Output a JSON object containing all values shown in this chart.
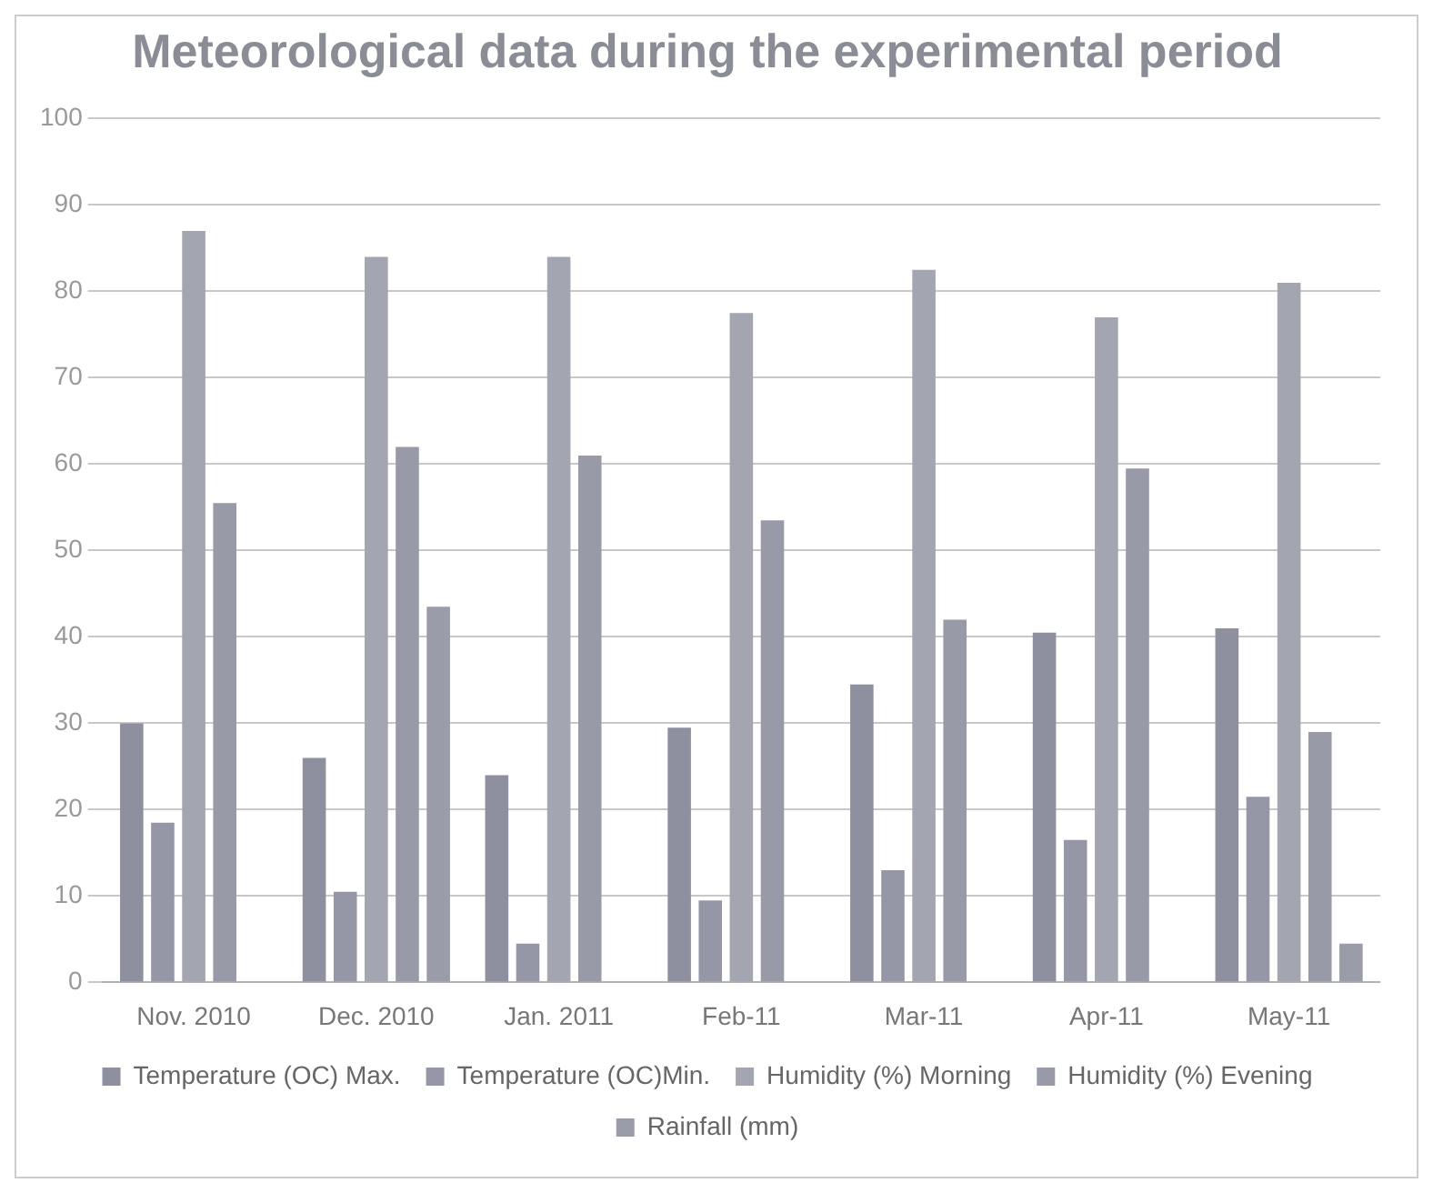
{
  "chart_data": {
    "type": "bar",
    "title": "Meteorological data during the experimental period",
    "categories": [
      "Nov. 2010",
      "Dec. 2010",
      "Jan. 2011",
      "Feb-11",
      "Mar-11",
      "Apr-11",
      "May-11"
    ],
    "series": [
      {
        "name": "Temperature (OC) Max.",
        "color": "#8e909f",
        "values": [
          30,
          26,
          24,
          29.5,
          34.5,
          40.5,
          41
        ]
      },
      {
        "name": "Temperature (OC)Min.",
        "color": "#9597a6",
        "values": [
          18.5,
          10.5,
          4.5,
          9.5,
          13,
          16.5,
          21.5
        ]
      },
      {
        "name": "Humidity (%) Morning",
        "color": "#a3a5b0",
        "values": [
          87,
          84,
          84,
          77.5,
          82.5,
          77,
          81
        ]
      },
      {
        "name": "Humidity (%) Evening",
        "color": "#989aa8",
        "values": [
          55.5,
          62,
          61,
          53.5,
          42,
          59.5,
          29
        ]
      },
      {
        "name": "Rainfall (mm)",
        "color": "#9a9ca9",
        "values": [
          0,
          43.5,
          0,
          0,
          0,
          0,
          4.5
        ]
      }
    ],
    "ylim": [
      0,
      100
    ],
    "yticks": [
      0,
      10,
      20,
      30,
      40,
      50,
      60,
      70,
      80,
      90,
      100
    ],
    "grid": "y",
    "legend": "bottom"
  }
}
